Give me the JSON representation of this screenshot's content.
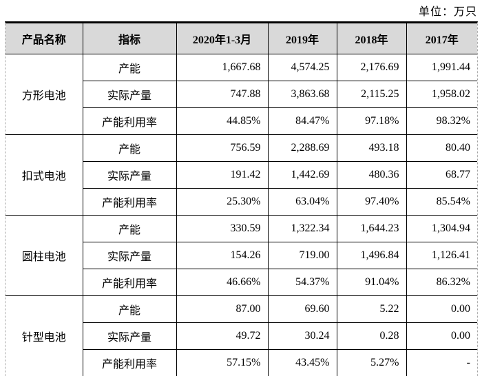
{
  "unit_label": "单位：万只",
  "table": {
    "headers": [
      "产品名称",
      "指标",
      "2020年1-3月",
      "2019年",
      "2018年",
      "2017年"
    ],
    "groups": [
      {
        "product": "方形电池",
        "rows": [
          {
            "indicator": "产能",
            "values": [
              "1,667.68",
              "4,574.25",
              "2,176.69",
              "1,991.44"
            ]
          },
          {
            "indicator": "实际产量",
            "values": [
              "747.88",
              "3,863.68",
              "2,115.25",
              "1,958.02"
            ]
          },
          {
            "indicator": "产能利用率",
            "values": [
              "44.85%",
              "84.47%",
              "97.18%",
              "98.32%"
            ]
          }
        ]
      },
      {
        "product": "扣式电池",
        "rows": [
          {
            "indicator": "产能",
            "values": [
              "756.59",
              "2,288.69",
              "493.18",
              "80.40"
            ]
          },
          {
            "indicator": "实际产量",
            "values": [
              "191.42",
              "1,442.69",
              "480.36",
              "68.77"
            ]
          },
          {
            "indicator": "产能利用率",
            "values": [
              "25.30%",
              "63.04%",
              "97.40%",
              "85.54%"
            ]
          }
        ]
      },
      {
        "product": "圆柱电池",
        "rows": [
          {
            "indicator": "产能",
            "values": [
              "330.59",
              "1,322.34",
              "1,644.23",
              "1,304.94"
            ]
          },
          {
            "indicator": "实际产量",
            "values": [
              "154.26",
              "719.00",
              "1,496.84",
              "1,126.41"
            ]
          },
          {
            "indicator": "产能利用率",
            "values": [
              "46.66%",
              "54.37%",
              "91.04%",
              "86.32%"
            ]
          }
        ]
      },
      {
        "product": "针型电池",
        "rows": [
          {
            "indicator": "产能",
            "values": [
              "87.00",
              "69.60",
              "5.22",
              "0.00"
            ]
          },
          {
            "indicator": "实际产量",
            "values": [
              "49.72",
              "30.24",
              "0.28",
              "0.00"
            ]
          },
          {
            "indicator": "产能利用率",
            "values": [
              "57.15%",
              "43.45%",
              "5.27%",
              "-"
            ]
          }
        ]
      }
    ]
  },
  "colors": {
    "header_bg": "#d9d9d9",
    "border": "#000000",
    "text": "#000000",
    "page_bg": "#ffffff"
  }
}
